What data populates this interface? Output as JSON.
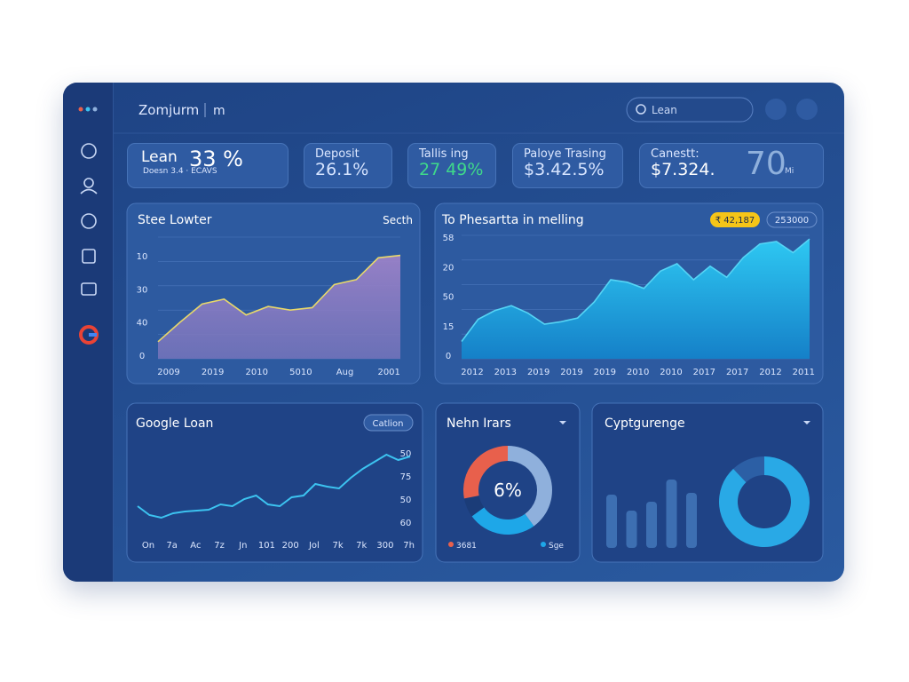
{
  "header": {
    "brand": "Zomjurm",
    "workspace": "m",
    "search": "Lean"
  },
  "kpis": [
    {
      "label": "Lean",
      "value": "33 %",
      "note": "Doesn 3.4 · ECAVS"
    },
    {
      "label": "Deposit",
      "value": "26.1%"
    },
    {
      "label": "Tallis ing",
      "value": "27 49%"
    },
    {
      "label": "Paloye Trasing",
      "value": "$3.42.5%"
    },
    {
      "label": "Canestt:",
      "value": "$7.324.",
      "extra": "70",
      "extra_unit": "Mi"
    }
  ],
  "chart_data": [
    {
      "type": "area",
      "title": "Stee Lowter",
      "subtitle": "Secth",
      "categories": [
        "2009",
        null,
        "2019",
        null,
        "2010",
        null,
        "5010",
        null,
        "Aug",
        null,
        "2001",
        null
      ],
      "values": [
        14,
        30,
        45,
        49,
        36,
        43,
        40,
        42,
        61,
        65,
        83,
        85
      ],
      "ylim": [
        0,
        100
      ],
      "y_labels": [
        "10",
        "30",
        "40",
        "0"
      ],
      "color": "#8a7cc4",
      "line_color": "#e8d86a"
    },
    {
      "type": "area",
      "title": "To Phesartta in melling",
      "badges": [
        "₹ 42,187",
        "253000"
      ],
      "categories": [
        "2012",
        null,
        "2013",
        null,
        "2019",
        null,
        "2019",
        null,
        "2019",
        null,
        "2010",
        null,
        "2010",
        null,
        "2017",
        null,
        "2017",
        null,
        "2012",
        null,
        "2011",
        null
      ],
      "values": [
        14,
        32,
        39,
        43,
        37,
        28,
        30,
        33,
        46,
        64,
        62,
        57,
        71,
        77,
        64,
        75,
        66,
        82,
        93,
        95,
        86,
        97
      ],
      "ylim": [
        0,
        100
      ],
      "y_labels": [
        "58",
        "20",
        "50",
        "15",
        "0"
      ],
      "color": "#1aa8e0",
      "line_color": "#55d4f5"
    },
    {
      "type": "line",
      "title": "Google Loan",
      "badge": "Catlion",
      "categories": [
        "On",
        null,
        "7a",
        null,
        "Ac",
        null,
        "7z",
        null,
        "Jn",
        null,
        "101",
        null,
        "200",
        null,
        "Jol",
        null,
        "7k",
        null,
        "7k",
        null,
        "300",
        null,
        "7h",
        null
      ],
      "values": [
        30,
        20,
        17,
        22,
        24,
        25,
        26,
        32,
        30,
        38,
        42,
        32,
        30,
        40,
        42,
        55,
        52,
        50,
        62,
        72,
        80,
        88,
        82,
        86
      ],
      "ylim": [
        0,
        100
      ],
      "y_labels": [
        "50",
        "75",
        "50",
        "60"
      ],
      "color": "#3cc3f0"
    },
    {
      "type": "pie",
      "title": "Nehn Irars",
      "center_label": "6%",
      "values": [
        40,
        25,
        7,
        28
      ],
      "colors": [
        "#8fb0dc",
        "#1ea7e8",
        "#1b3c78",
        "#e8604c"
      ],
      "legend": [
        {
          "name": "3681",
          "color": "#e8604c"
        },
        {
          "name": "Sge",
          "color": "#1ea7e8"
        }
      ]
    },
    {
      "type": "bar",
      "title": "Cyptgurenge",
      "values": [
        60,
        42,
        52,
        77,
        62
      ],
      "ylim": [
        0,
        100
      ],
      "color": "#3d6fb2"
    },
    {
      "type": "pie",
      "values": [
        88,
        12
      ],
      "colors": [
        "#29a9e6",
        "#2c5fa5"
      ]
    }
  ]
}
